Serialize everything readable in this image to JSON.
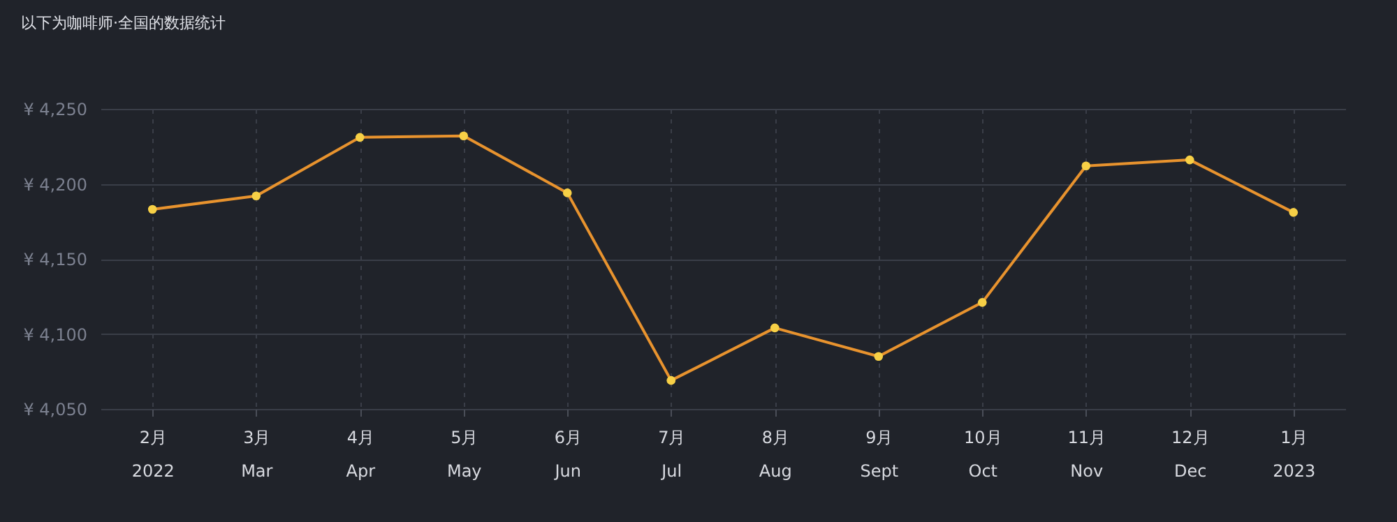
{
  "chart_data": {
    "type": "line",
    "title": "以下为咖啡师·全国的数据统计",
    "categories": [
      "2月\n2022",
      "3月\nMar",
      "4月\nApr",
      "5月\nMay",
      "6月\nJun",
      "7月\nJul",
      "8月\nAug",
      "9月\nSept",
      "10月\nOct",
      "11月\nNov",
      "12月\nDec",
      "1月\n2023"
    ],
    "series": [
      {
        "color": "#e8932e",
        "values": [
          4183,
          4192,
          4231,
          4232,
          4194,
          4069,
          4104,
          4085,
          4121,
          4212,
          4216,
          4181
        ]
      }
    ],
    "ylim": [
      4050,
      4250
    ],
    "yticks": [
      {
        "value": 4050,
        "label": "¥ 4,050"
      },
      {
        "value": 4100,
        "label": "¥ 4,100"
      },
      {
        "value": 4150,
        "label": "¥ 4,150"
      },
      {
        "value": 4200,
        "label": "¥ 4,200"
      },
      {
        "value": 4250,
        "label": "¥ 4,250"
      }
    ],
    "grid": true,
    "marker": "circle",
    "line_style": "solid"
  }
}
